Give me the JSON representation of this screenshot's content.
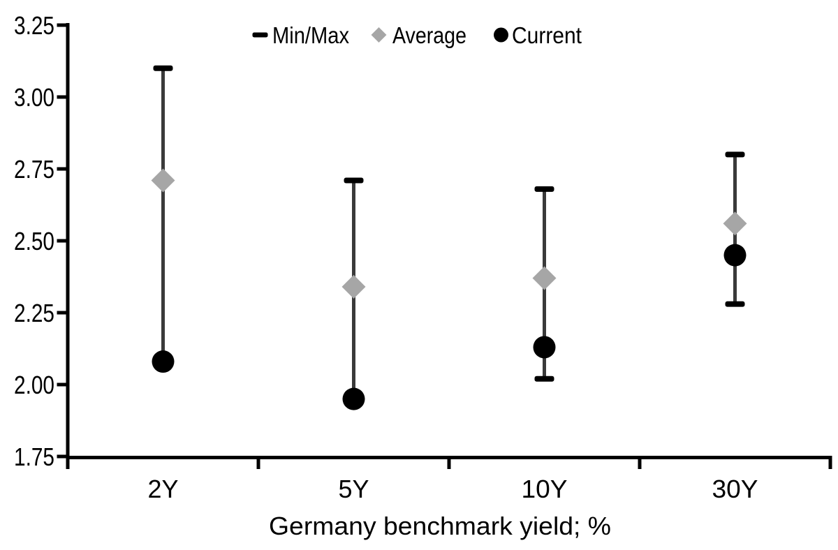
{
  "chart_data": {
    "type": "scatter",
    "subtype": "min-max-range",
    "title": "",
    "xlabel": "Germany benchmark yield; %",
    "ylabel": "",
    "categories": [
      "2Y",
      "5Y",
      "10Y",
      "30Y"
    ],
    "ylim": [
      1.75,
      3.25
    ],
    "ytick_step": 0.25,
    "ytick_labels": [
      "3.25",
      "3.00",
      "2.75",
      "2.50",
      "2.25",
      "2.00",
      "1.75"
    ],
    "grid": false,
    "legend_position": "top-center",
    "whisker_color": "#3a3a3a",
    "axis_color": "#000000",
    "background_color": "#ffffff",
    "series": [
      {
        "name": "Min/Max",
        "marker": "dash",
        "color": "#000000",
        "values_max": [
          3.1,
          2.71,
          2.68,
          2.8
        ],
        "values_min": [
          2.08,
          1.95,
          2.02,
          2.28
        ]
      },
      {
        "name": "Average",
        "marker": "diamond",
        "color": "#a6a6a6",
        "values": [
          2.71,
          2.34,
          2.37,
          2.56
        ]
      },
      {
        "name": "Current",
        "marker": "circle",
        "color": "#000000",
        "values": [
          2.08,
          1.95,
          2.13,
          2.45
        ]
      }
    ]
  }
}
